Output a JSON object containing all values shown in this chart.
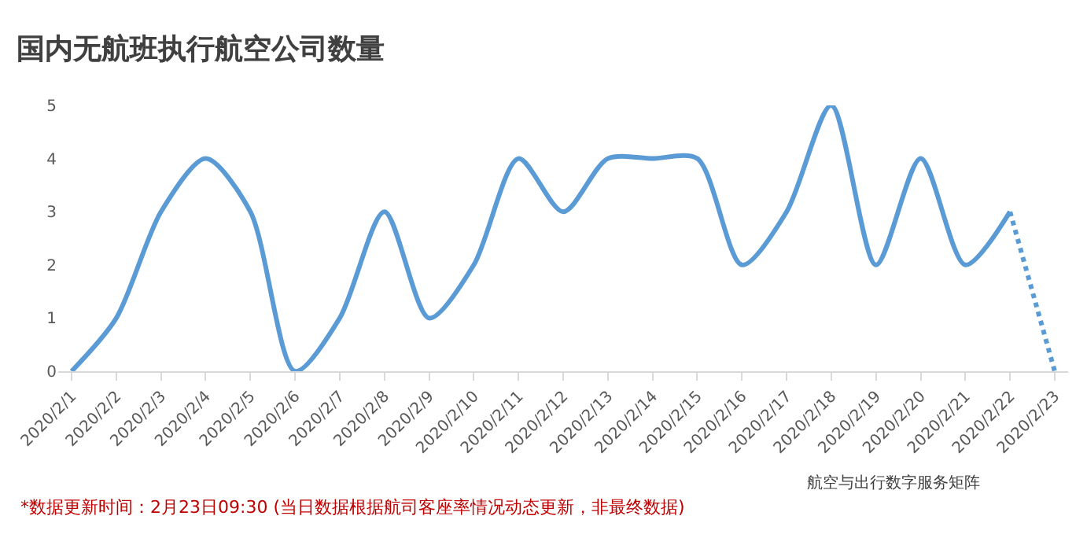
{
  "chart_data": {
    "type": "line",
    "title": "国内无航班执行航空公司数量",
    "categories": [
      "2020/2/1",
      "2020/2/2",
      "2020/2/3",
      "2020/2/4",
      "2020/2/5",
      "2020/2/6",
      "2020/2/7",
      "2020/2/8",
      "2020/2/9",
      "2020/2/10",
      "2020/2/11",
      "2020/2/12",
      "2020/2/13",
      "2020/2/14",
      "2020/2/15",
      "2020/2/16",
      "2020/2/17",
      "2020/2/18",
      "2020/2/19",
      "2020/2/20",
      "2020/2/21",
      "2020/2/22",
      "2020/2/23"
    ],
    "series": [
      {
        "color": "#5b9bd5",
        "line_style": "solid",
        "values": [
          0,
          1,
          3,
          4,
          3,
          0,
          1,
          3,
          1,
          2,
          4,
          3,
          4,
          4,
          4,
          2,
          3,
          5,
          2,
          4,
          2,
          3,
          null
        ]
      },
      {
        "color": "#5b9bd5",
        "line_style": "dotted",
        "values": [
          null,
          null,
          null,
          null,
          null,
          null,
          null,
          null,
          null,
          null,
          null,
          null,
          null,
          null,
          null,
          null,
          null,
          null,
          null,
          null,
          null,
          3,
          0
        ]
      }
    ],
    "ylim": [
      0,
      5
    ],
    "yticks": [
      0,
      1,
      2,
      3,
      4,
      5
    ],
    "grid": false,
    "marker": "none",
    "annotations": [
      "*数据更新时间：2月23日09:30 (当日数据根据航司客座率情况动态更新，非最终数据)",
      "航空与出行数字服务矩阵"
    ]
  }
}
